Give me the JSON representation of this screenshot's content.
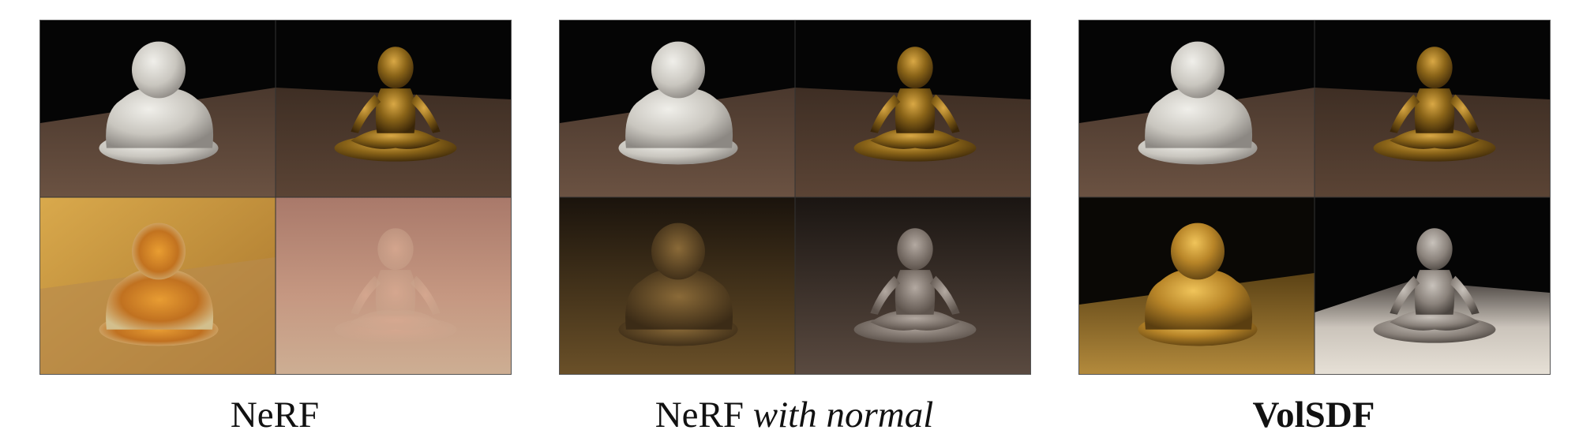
{
  "figure": {
    "panels": [
      {
        "caption_parts": [
          {
            "text": "NeRF",
            "style": "normal"
          }
        ],
        "top_row": [
          "buddha-statue-white-original",
          "monk-statue-gold-original"
        ],
        "bottom_row": [
          "buddha-statue-glassy-amber-nerf",
          "monk-statue-translucent-nerf"
        ]
      },
      {
        "caption_parts": [
          {
            "text": "NeRF ",
            "style": "normal"
          },
          {
            "text": "with normal",
            "style": "italic"
          }
        ],
        "top_row": [
          "buddha-statue-white-original",
          "monk-statue-gold-original"
        ],
        "bottom_row": [
          "buddha-statue-dark-gold-nerf-normal",
          "monk-statue-silver-nerf-normal"
        ]
      },
      {
        "caption_parts": [
          {
            "text": "VolSDF",
            "style": "bold"
          }
        ],
        "top_row": [
          "buddha-statue-white-original",
          "monk-statue-gold-original"
        ],
        "bottom_row": [
          "buddha-statue-gold-volsdf",
          "monk-statue-white-volsdf"
        ]
      }
    ],
    "colors": {
      "background": "#ffffff",
      "scene_black": "#050505",
      "floor_brown": "#5a4538",
      "white_statue": "#d8d6d0",
      "gold_statue": "#8a6418"
    }
  }
}
